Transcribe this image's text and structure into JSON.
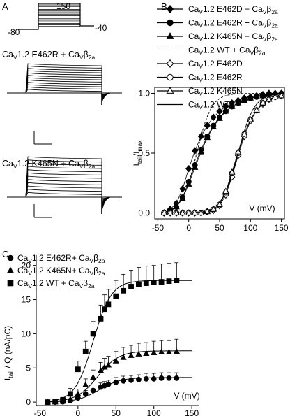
{
  "panels": {
    "a": "A",
    "b": "B",
    "c": "C"
  },
  "protocol": {
    "v_hold": "-80",
    "v_test": "+150",
    "v_tail": "-40"
  },
  "traces": [
    {
      "label_main": "Ca",
      "label_sub1": "V",
      "label_mid": "1.2 E462R + Ca",
      "label_sub2": "V",
      "label_beta": "β",
      "label_sub3": "2a",
      "n_sweeps": 12
    },
    {
      "label_main": "Ca",
      "label_sub1": "V",
      "label_mid": "1.2 K465N + Ca",
      "label_sub2": "V",
      "label_beta": "β",
      "label_sub3": "2a",
      "n_sweeps": 12
    }
  ],
  "legend_b": [
    {
      "marker": "diamond",
      "fill": "#000000",
      "line": "solid",
      "text": "1.2 E462D + Ca",
      "beta": true
    },
    {
      "marker": "circle",
      "fill": "#000000",
      "line": "solid",
      "text": "1.2 E462R + Ca",
      "beta": true
    },
    {
      "marker": "triangle",
      "fill": "#000000",
      "line": "solid",
      "text": "1.2 K465N + Ca",
      "beta": true
    },
    {
      "marker": "none",
      "fill": "#000000",
      "line": "dashed",
      "text": "1.2 WT + Ca",
      "beta": true
    },
    {
      "marker": "diamond",
      "fill": "#ffffff",
      "line": "solid",
      "text": "1.2 E462D",
      "beta": false
    },
    {
      "marker": "circle",
      "fill": "#ffffff",
      "line": "solid",
      "text": "1.2 E462R",
      "beta": false
    },
    {
      "marker": "triangle",
      "fill": "#ffffff",
      "line": "solid",
      "text": "1.2 K465N",
      "beta": false
    },
    {
      "marker": "none",
      "fill": "#000000",
      "line": "solid",
      "text": "1.2 WT",
      "beta": false
    }
  ],
  "legend_c": [
    {
      "marker": "circle",
      "fill": "#000000",
      "text": "1.2 E462R+ Ca"
    },
    {
      "marker": "triangle",
      "fill": "#000000",
      "text": "1.2 K465N+ Ca"
    },
    {
      "marker": "square",
      "fill": "#000000",
      "text": "1.2 WT + Ca"
    }
  ],
  "chart_data": [
    {
      "panel": "B",
      "type": "line",
      "xlabel": "V (mV)",
      "ylabel_main": "I",
      "ylabel_sub1": "tail",
      "ylabel_mid": "/I",
      "ylabel_sub2": "max",
      "xlim": [
        -55,
        155
      ],
      "ylim": [
        -0.05,
        1.05
      ],
      "xticks": [
        "-50",
        "0",
        "50",
        "100",
        "150"
      ],
      "yticks": [
        "0.0",
        "0.5",
        "1.0"
      ],
      "xtick_values": [
        -50,
        0,
        50,
        100,
        150
      ],
      "ytick_values": [
        0.0,
        0.5,
        1.0
      ],
      "x": [
        -40,
        -30,
        -20,
        -10,
        0,
        10,
        20,
        30,
        40,
        50,
        60,
        70,
        80,
        90,
        100,
        110,
        120,
        130,
        140,
        150
      ],
      "series": [
        {
          "name": "Cav1.2 E462D + Cavβ2a",
          "marker": "diamond",
          "fill": "#000000",
          "values": [
            0.0,
            0.03,
            0.08,
            0.2,
            0.37,
            0.52,
            0.64,
            0.73,
            0.8,
            0.85,
            0.89,
            0.92,
            0.94,
            0.96,
            0.97,
            0.98,
            0.99,
            1.0,
            1.0,
            1.0
          ]
        },
        {
          "name": "Cav1.2 E462R + Cavβ2a",
          "marker": "circle",
          "fill": "#000000",
          "values": [
            0.0,
            0.02,
            0.05,
            0.13,
            0.26,
            0.4,
            0.53,
            0.64,
            0.73,
            0.8,
            0.85,
            0.89,
            0.92,
            0.94,
            0.96,
            0.97,
            0.98,
            0.99,
            0.99,
            1.0
          ]
        },
        {
          "name": "Cav1.2 K465N + Cavβ2a",
          "marker": "triangle",
          "fill": "#000000",
          "values": [
            0.0,
            0.02,
            0.05,
            0.12,
            0.24,
            0.38,
            0.51,
            0.63,
            0.72,
            0.79,
            0.85,
            0.89,
            0.92,
            0.94,
            0.96,
            0.97,
            0.98,
            0.99,
            0.99,
            1.0
          ]
        },
        {
          "name": "Cav1.2 E462D",
          "marker": "diamond",
          "fill": "#ffffff",
          "values": [
            0.0,
            0.0,
            0.0,
            0.0,
            0.0,
            0.0,
            0.0,
            0.01,
            0.02,
            0.06,
            0.15,
            0.3,
            0.48,
            0.64,
            0.77,
            0.86,
            0.91,
            0.95,
            0.97,
            0.98
          ]
        },
        {
          "name": "Cav1.2 E462R",
          "marker": "circle",
          "fill": "#ffffff",
          "values": [
            0.0,
            0.0,
            0.0,
            0.0,
            0.0,
            0.0,
            0.0,
            0.01,
            0.03,
            0.07,
            0.17,
            0.33,
            0.5,
            0.66,
            0.78,
            0.86,
            0.92,
            0.95,
            0.97,
            0.98
          ]
        },
        {
          "name": "Cav1.2 K465N",
          "marker": "triangle",
          "fill": "#ffffff",
          "values": [
            0.0,
            0.0,
            0.0,
            0.0,
            0.0,
            0.0,
            0.0,
            0.01,
            0.03,
            0.07,
            0.18,
            0.34,
            0.51,
            0.66,
            0.78,
            0.86,
            0.92,
            0.95,
            0.97,
            0.98
          ]
        }
      ],
      "fits": [
        {
          "name": "Cav1.2 WT + Cavβ2a",
          "dash": true,
          "v_half": 13,
          "k": 12
        },
        {
          "name": "Cav1.2 WT",
          "dash": false,
          "v_half": 80,
          "k": 13
        }
      ]
    },
    {
      "panel": "C",
      "type": "line",
      "xlabel": "V (mV)",
      "ylabel_main": "I",
      "ylabel_sub1": "tail",
      "ylabel_mid": " / Q (nA/pC)",
      "xlim": [
        -55,
        160
      ],
      "ylim": [
        -0.5,
        21.5
      ],
      "xticks": [
        "-50",
        "0",
        "50",
        "100",
        "150"
      ],
      "yticks": [
        "0",
        "5",
        "10",
        "15",
        "20"
      ],
      "xtick_values": [
        -50,
        0,
        50,
        100,
        150
      ],
      "ytick_values": [
        0,
        5,
        10,
        15,
        20
      ],
      "x": [
        -40,
        -30,
        -20,
        -10,
        0,
        10,
        20,
        30,
        35,
        40,
        50,
        60,
        70,
        80,
        90,
        100,
        110,
        120,
        130
      ],
      "series": [
        {
          "name": "Cav1.2 E462R+ Cavβ2a",
          "marker": "circle",
          "values": [
            0.0,
            0.0,
            0.05,
            0.2,
            0.6,
            1.2,
            1.7,
            2.2,
            2.4,
            2.6,
            2.9,
            3.1,
            3.2,
            3.3,
            3.4,
            3.4,
            3.5,
            3.5,
            3.5
          ],
          "err": [
            0.1,
            0.1,
            0.2,
            0.3,
            0.4,
            0.5,
            0.5,
            0.6,
            0.6,
            0.6,
            0.7,
            0.7,
            0.7,
            0.7,
            0.8,
            0.8,
            0.8,
            0.8,
            0.8
          ]
        },
        {
          "name": "Cav1.2 K465N+ Cavβ2a",
          "marker": "triangle",
          "values": [
            0.0,
            0.0,
            0.1,
            0.4,
            1.2,
            2.5,
            3.6,
            4.6,
            5.1,
            5.4,
            6.0,
            6.5,
            6.8,
            7.0,
            7.1,
            7.2,
            7.3,
            7.3,
            7.4
          ],
          "err": [
            0.1,
            0.2,
            0.3,
            0.5,
            0.7,
            0.9,
            1.1,
            1.2,
            1.3,
            1.3,
            1.4,
            1.5,
            1.5,
            1.6,
            1.6,
            1.7,
            1.7,
            1.7,
            1.8
          ]
        },
        {
          "name": "Cav1.2 WT + Cavβ2a",
          "marker": "square",
          "values": [
            0.0,
            0.1,
            0.3,
            1.2,
            4.8,
            7.4,
            10.0,
            12.2,
            13.6,
            14.3,
            15.5,
            16.3,
            16.9,
            17.2,
            17.4,
            17.5,
            17.6,
            17.7,
            17.8
          ],
          "err": [
            0.1,
            0.2,
            0.4,
            0.8,
            1.2,
            1.5,
            1.8,
            2.0,
            2.1,
            2.2,
            2.3,
            2.4,
            2.4,
            2.5,
            2.5,
            2.5,
            2.6,
            2.6,
            2.6
          ]
        }
      ],
      "fits": [
        {
          "name": "Cav1.2 E462R+ Cavβ2a",
          "gmax": 3.6,
          "v_half": 28,
          "k": 14
        },
        {
          "name": "Cav1.2 K465N+ Cavβ2a",
          "gmax": 7.5,
          "v_half": 26,
          "k": 14
        },
        {
          "name": "Cav1.2 WT + Cavβ2a",
          "gmax": 17.8,
          "v_half": 20,
          "k": 12
        }
      ]
    }
  ]
}
